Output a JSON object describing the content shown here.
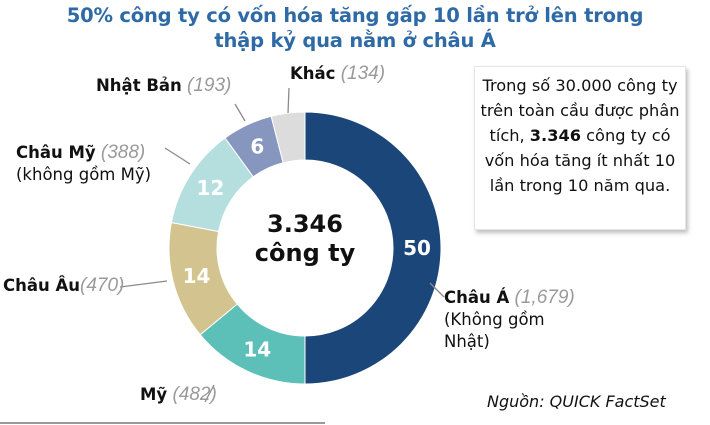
{
  "title": {
    "line1": "50% công ty có vốn hóa tăng gấp 10 lần trở lên trong",
    "line2": "thập kỷ qua nằm ở châu Á"
  },
  "center": {
    "value": "3.346",
    "unit": "công ty"
  },
  "callout": {
    "pre": "Trong số 30.000 công ty trên toàn cầu được phân tích,",
    "highlight": "3.346",
    "post": "công ty có vốn hóa tăng ít nhất 10 lần trong 10 năm qua."
  },
  "labels": {
    "chau_a": {
      "name": "Châu Á",
      "count": "(1,679)",
      "sub1": "(Không gồm",
      "sub2": "Nhật)"
    },
    "my": {
      "name": "Mỹ",
      "count": "(482)"
    },
    "chau_au": {
      "name": "Châu Âu",
      "count": "(470)"
    },
    "chau_my": {
      "name": "Châu Mỹ",
      "count": "(388)",
      "sub1": "(không gồm Mỹ)"
    },
    "nhat_ban": {
      "name": "Nhật Bản",
      "count": "(193)"
    },
    "khac": {
      "name": "Khác",
      "count": "(134)"
    }
  },
  "source": "Nguồn: QUICK FactSet",
  "chart_data": {
    "type": "pie",
    "subtype": "donut",
    "title": "50% công ty có vốn hóa tăng gấp 10 lần trở lên trong thập kỷ qua nằm ở châu Á",
    "center_label": "3.346 công ty",
    "total": 3346,
    "unit_values": "percent",
    "categories": [
      "Châu Á (Không gồm Nhật)",
      "Mỹ",
      "Châu Âu",
      "Châu Mỹ (không gồm Mỹ)",
      "Nhật Bản",
      "Khác"
    ],
    "values": [
      50,
      14,
      14,
      12,
      6,
      4
    ],
    "counts": [
      1679,
      482,
      470,
      388,
      193,
      134
    ],
    "data_labels": [
      "50",
      "14",
      "14",
      "12",
      "6",
      ""
    ],
    "colors": [
      "#1b4679",
      "#5cc0b8",
      "#d3c38e",
      "#b5dfdf",
      "#8796bf",
      "#dcdcdc"
    ],
    "start_angle_deg": 0,
    "direction": "clockwise",
    "annotation": "Trong số 30.000 công ty trên toàn cầu được phân tích, 3.346 công ty có vốn hóa tăng ít nhất 10 lần trong 10 năm qua.",
    "source": "Nguồn: QUICK FactSet"
  }
}
